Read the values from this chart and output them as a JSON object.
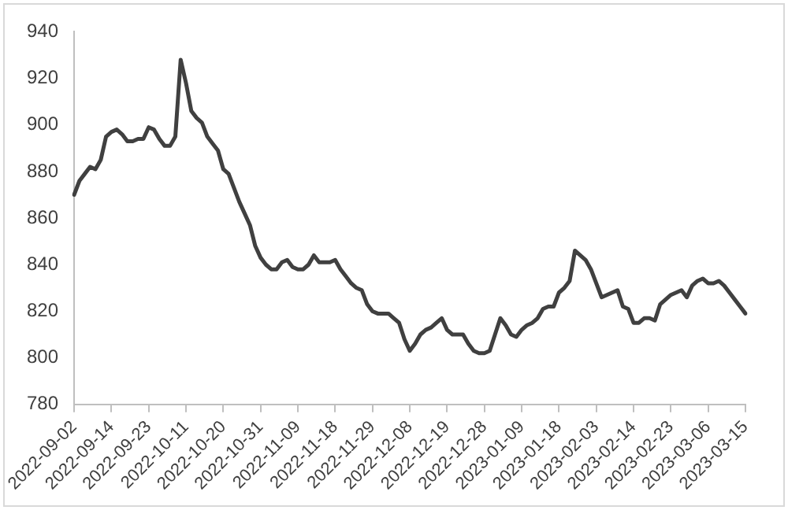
{
  "chart_data": {
    "type": "line",
    "categories": [
      "2022-09-02",
      null,
      null,
      null,
      null,
      null,
      null,
      "2022-09-14",
      null,
      null,
      null,
      null,
      null,
      null,
      "2022-09-23",
      null,
      null,
      null,
      null,
      null,
      null,
      "2022-10-11",
      null,
      null,
      null,
      null,
      null,
      null,
      "2022-10-20",
      null,
      null,
      null,
      null,
      null,
      null,
      "2022-10-31",
      null,
      null,
      null,
      null,
      null,
      null,
      "2022-11-09",
      null,
      null,
      null,
      null,
      null,
      null,
      "2022-11-18",
      null,
      null,
      null,
      null,
      null,
      null,
      "2022-11-29",
      null,
      null,
      null,
      null,
      null,
      null,
      "2022-12-08",
      null,
      null,
      null,
      null,
      null,
      null,
      "2022-12-19",
      null,
      null,
      null,
      null,
      null,
      null,
      "2022-12-28",
      null,
      null,
      null,
      null,
      null,
      null,
      "2023-01-09",
      null,
      null,
      null,
      null,
      null,
      null,
      "2023-01-18",
      null,
      null,
      null,
      null,
      null,
      null,
      "2023-02-03",
      null,
      null,
      null,
      null,
      null,
      null,
      "2023-02-14",
      null,
      null,
      null,
      null,
      null,
      null,
      "2023-02-23",
      null,
      null,
      null,
      null,
      null,
      null,
      "2023-03-06",
      null,
      null,
      null,
      null,
      null,
      null,
      "2023-03-15"
    ],
    "values": [
      870,
      876,
      879,
      882,
      881,
      885,
      895,
      897,
      898,
      896,
      893,
      893,
      894,
      894,
      899,
      898,
      894,
      891,
      891,
      895,
      928,
      918,
      906,
      903,
      901,
      895,
      892,
      889,
      881,
      879,
      873,
      867,
      862,
      857,
      848,
      843,
      840,
      838,
      838,
      841,
      842,
      839,
      838,
      838,
      840,
      844,
      841,
      841,
      841,
      842,
      838,
      835,
      832,
      830,
      829,
      823,
      820,
      819,
      819,
      819,
      817,
      815,
      808,
      803,
      806,
      810,
      812,
      813,
      815,
      817,
      812,
      810,
      810,
      810,
      806,
      803,
      802,
      802,
      803,
      810,
      817,
      814,
      810,
      809,
      812,
      814,
      815,
      817,
      821,
      822,
      822,
      828,
      830,
      833,
      846,
      844,
      842,
      838,
      832,
      826,
      827,
      828,
      829,
      822,
      821,
      815,
      815,
      817,
      817,
      816,
      823,
      825,
      827,
      828,
      829,
      826,
      831,
      833,
      834,
      832,
      832,
      833,
      831,
      828,
      825,
      822,
      819
    ],
    "color": "#404040",
    "ylim": [
      780,
      940
    ],
    "yticks": [
      780,
      800,
      820,
      840,
      860,
      880,
      900,
      920,
      940
    ]
  }
}
